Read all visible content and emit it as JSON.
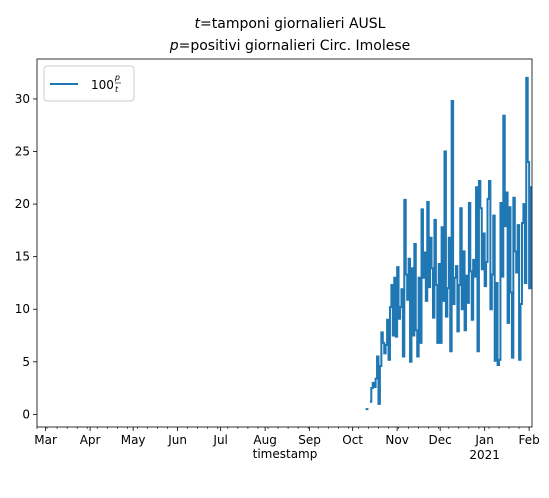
{
  "chart_data": {
    "type": "line",
    "title_line1": {
      "var": "t",
      "text": "=tamponi giornalieri AUSL"
    },
    "title_line2": {
      "var": "p",
      "text": "=positivi giornalieri Circ. Imolese"
    },
    "xlabel": "timestamp",
    "ylabel": "",
    "xlim": [
      "2020-02-24",
      "2021-02-03"
    ],
    "ylim": [
      -1.2,
      33.8
    ],
    "y_ticks": [
      0,
      5,
      10,
      15,
      20,
      25,
      30
    ],
    "x_ticks": [
      {
        "date": "2020-03-01",
        "label": "Mar"
      },
      {
        "date": "2020-04-01",
        "label": "Apr"
      },
      {
        "date": "2020-05-01",
        "label": "May"
      },
      {
        "date": "2020-06-01",
        "label": "Jun"
      },
      {
        "date": "2020-07-01",
        "label": "Jul"
      },
      {
        "date": "2020-08-01",
        "label": "Aug"
      },
      {
        "date": "2020-09-01",
        "label": "Sep"
      },
      {
        "date": "2020-10-01",
        "label": "Oct"
      },
      {
        "date": "2020-11-01",
        "label": "Nov"
      },
      {
        "date": "2020-12-01",
        "label": "Dec"
      },
      {
        "date": "2021-01-01",
        "label": "Jan",
        "sublabel": "2021"
      },
      {
        "date": "2021-02-01",
        "label": "Feb"
      }
    ],
    "legend": {
      "position": "upper-left",
      "label_prefix": "100",
      "frac_num": "p",
      "frac_den": "t"
    },
    "grid": false,
    "series": [
      {
        "color": "#1f77b4",
        "drawstyle": "steps",
        "x": [
          "2020-10-10",
          "2020-10-11",
          "2020-10-12",
          "2020-10-13",
          "2020-10-14",
          "2020-10-15",
          "2020-10-16",
          "2020-10-17",
          "2020-10-18",
          "2020-10-19",
          "2020-10-20",
          "2020-10-21",
          "2020-10-22",
          "2020-10-23",
          "2020-10-24",
          "2020-10-25",
          "2020-10-26",
          "2020-10-27",
          "2020-10-28",
          "2020-10-29",
          "2020-10-30",
          "2020-10-31",
          "2020-11-01",
          "2020-11-02",
          "2020-11-03",
          "2020-11-04",
          "2020-11-05",
          "2020-11-06",
          "2020-11-07",
          "2020-11-08",
          "2020-11-09",
          "2020-11-10",
          "2020-11-11",
          "2020-11-12",
          "2020-11-13",
          "2020-11-14",
          "2020-11-15",
          "2020-11-16",
          "2020-11-17",
          "2020-11-18",
          "2020-11-19",
          "2020-11-20",
          "2020-11-21",
          "2020-11-22",
          "2020-11-23",
          "2020-11-24",
          "2020-11-25",
          "2020-11-26",
          "2020-11-27",
          "2020-11-28",
          "2020-11-29",
          "2020-11-30",
          "2020-12-01",
          "2020-12-02",
          "2020-12-03",
          "2020-12-04",
          "2020-12-05",
          "2020-12-06",
          "2020-12-07",
          "2020-12-08",
          "2020-12-09",
          "2020-12-10",
          "2020-12-11",
          "2020-12-12",
          "2020-12-13",
          "2020-12-14",
          "2020-12-15",
          "2020-12-16",
          "2020-12-17",
          "2020-12-18",
          "2020-12-19",
          "2020-12-20",
          "2020-12-21",
          "2020-12-22",
          "2020-12-23",
          "2020-12-24",
          "2020-12-25",
          "2020-12-26",
          "2020-12-27",
          "2020-12-28",
          "2020-12-29",
          "2020-12-30",
          "2020-12-31",
          "2021-01-01",
          "2021-01-02",
          "2021-01-03",
          "2021-01-04",
          "2021-01-05",
          "2021-01-06",
          "2021-01-07",
          "2021-01-08",
          "2021-01-09",
          "2021-01-10",
          "2021-01-11",
          "2021-01-12",
          "2021-01-13",
          "2021-01-14",
          "2021-01-15",
          "2021-01-16",
          "2021-01-17",
          "2021-01-18",
          "2021-01-19",
          "2021-01-20",
          "2021-01-21",
          "2021-01-22",
          "2021-01-23",
          "2021-01-24",
          "2021-01-25",
          "2021-01-26",
          "2021-01-27",
          "2021-01-28",
          "2021-01-29",
          "2021-01-30",
          "2021-01-31",
          "2021-02-01",
          "2021-02-02"
        ],
        "y": [
          0.5,
          0.5,
          null,
          1.2,
          2.5,
          3.0,
          2.6,
          3.4,
          5.5,
          1.0,
          4.6,
          7.8,
          6.8,
          5.8,
          6.6,
          9.0,
          5.2,
          10.2,
          12.3,
          7.5,
          13.0,
          7.4,
          14.0,
          9.1,
          10.2,
          11.9,
          5.5,
          20.4,
          13.3,
          10.9,
          14.8,
          5.0,
          13.9,
          7.5,
          16.2,
          8.0,
          5.5,
          13.0,
          6.8,
          19.5,
          13.0,
          15.4,
          10.8,
          20.2,
          12.1,
          16.8,
          13.9,
          9.2,
          18.5,
          12.3,
          6.8,
          14.3,
          6.8,
          17.8,
          10.8,
          25.0,
          9.3,
          12.0,
          16.8,
          6.0,
          29.8,
          10.5,
          13.0,
          14.1,
          7.9,
          12.3,
          19.6,
          10.0,
          15.5,
          8.0,
          13.2,
          10.6,
          20.1,
          13.6,
          9.0,
          14.7,
          13.1,
          21.6,
          6.0,
          22.2,
          19.6,
          13.8,
          17.2,
          12.2,
          14.5,
          20.5,
          22.2,
          10.0,
          13.3,
          18.9,
          5.1,
          12.5,
          4.7,
          5.2,
          20.1,
          13.1,
          28.4,
          17.9,
          21.1,
          8.7,
          19.7,
          11.6,
          5.4,
          20.6,
          15.5,
          13.5,
          18.0,
          5.2,
          10.5,
          18.2,
          20.0,
          12.5,
          32.0,
          24.0,
          12.0,
          21.6
        ]
      }
    ]
  }
}
